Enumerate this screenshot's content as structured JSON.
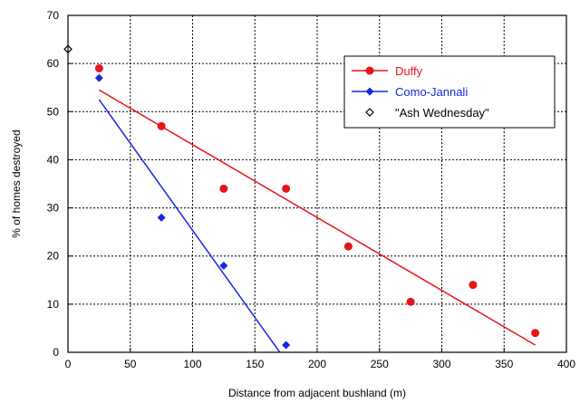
{
  "chart_data": {
    "type": "scatter",
    "title": "",
    "xlabel": "Distance from adjacent bushland (m)",
    "ylabel": "% of homes destroyed",
    "xlim": [
      0,
      400
    ],
    "ylim": [
      0,
      70
    ],
    "xticks": [
      0,
      50,
      100,
      150,
      200,
      250,
      300,
      350,
      400
    ],
    "yticks": [
      0,
      10,
      20,
      30,
      40,
      50,
      60,
      70
    ],
    "grid": true,
    "grid_style": "dashed",
    "legend_position": "top-right",
    "series": [
      {
        "name": "Duffy",
        "color": "#e8141c",
        "marker": "circle",
        "x": [
          25,
          75,
          125,
          175,
          225,
          275,
          325,
          375
        ],
        "y": [
          59,
          47,
          34,
          34,
          22,
          10.5,
          14,
          4
        ],
        "fit_line": {
          "x": [
            25,
            375
          ],
          "y": [
            54.5,
            1.5
          ]
        }
      },
      {
        "name": "Como-Jannali",
        "color": "#1428dc",
        "marker": "diamond",
        "x": [
          25,
          75,
          125,
          175
        ],
        "y": [
          57,
          28,
          18,
          1.5
        ],
        "fit_line": {
          "x": [
            25,
            170
          ],
          "y": [
            52.5,
            0
          ]
        }
      },
      {
        "name": "\"Ash Wednesday\"",
        "color": "#000000",
        "marker": "open-diamond",
        "x": [
          0
        ],
        "y": [
          63
        ]
      }
    ]
  }
}
